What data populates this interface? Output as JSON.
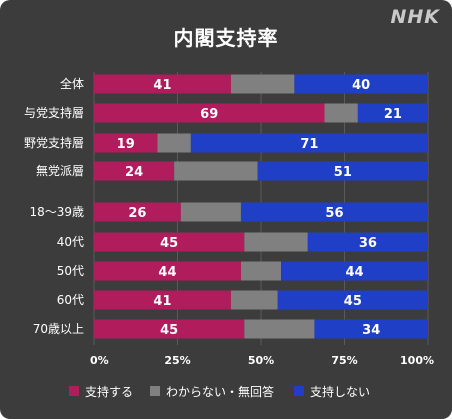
{
  "header": {
    "brand": "NHK"
  },
  "chart_data": {
    "type": "bar",
    "orientation": "horizontal",
    "stacked": true,
    "title": "内閣支持率",
    "categories": [
      "全体",
      "与党支持層",
      "野党支持層",
      "無党派層",
      "18～39歳",
      "40代",
      "50代",
      "60代",
      "70歳以上"
    ],
    "series": [
      {
        "name": "支持する",
        "color": "#b01c5c",
        "values": [
          41,
          69,
          19,
          24,
          26,
          45,
          44,
          41,
          45
        ]
      },
      {
        "name": "わからない・無回答",
        "color": "#808080",
        "values": [
          19,
          10,
          10,
          25,
          18,
          19,
          12,
          14,
          21
        ]
      },
      {
        "name": "支持しない",
        "color": "#1f3fc6",
        "values": [
          40,
          21,
          71,
          51,
          56,
          36,
          44,
          45,
          34
        ]
      }
    ],
    "shown_labels": [
      [
        41,
        null,
        40
      ],
      [
        69,
        null,
        21
      ],
      [
        19,
        null,
        71
      ],
      [
        24,
        null,
        51
      ],
      [
        26,
        null,
        56
      ],
      [
        45,
        null,
        36
      ],
      [
        44,
        null,
        44
      ],
      [
        41,
        null,
        45
      ],
      [
        45,
        null,
        34
      ]
    ],
    "xaxis": {
      "ticks": [
        "0%",
        "25%",
        "50%",
        "75%",
        "100%"
      ],
      "range": [
        0,
        100
      ]
    },
    "legend_position": "bottom",
    "grid": true
  }
}
